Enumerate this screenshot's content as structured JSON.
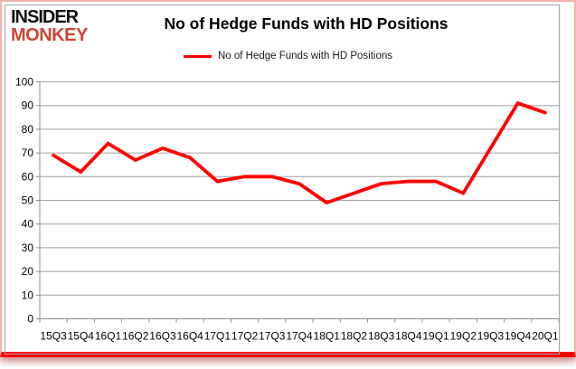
{
  "logo": {
    "line1": "INSIDER",
    "line2": "MONKEY"
  },
  "header": {
    "title": "No of Hedge Funds with HD Positions"
  },
  "legend": {
    "label": "No of Hedge Funds with HD Positions"
  },
  "colors": {
    "series": "#ff0000",
    "logo_red": "#cd4533",
    "logo_black": "#111111",
    "gridline": "#a0a0a0",
    "axis": "#8c8c8c",
    "tick_text": "#000000",
    "card_border": "#f2b2ab",
    "bottom_bar": "#ff0000"
  },
  "chart_data": {
    "type": "line",
    "title": "No of Hedge Funds with HD Positions",
    "categories": [
      "15Q3",
      "15Q4",
      "16Q1",
      "16Q2",
      "16Q3",
      "16Q4",
      "17Q1",
      "17Q2",
      "17Q3",
      "17Q4",
      "18Q1",
      "18Q2",
      "18Q3",
      "18Q4",
      "19Q1",
      "19Q2",
      "19Q3",
      "19Q4",
      "20Q1"
    ],
    "series": [
      {
        "name": "No of Hedge Funds with HD Positions",
        "values": [
          69,
          62,
          74,
          67,
          72,
          68,
          58,
          60,
          60,
          57,
          49,
          53,
          57,
          58,
          58,
          53,
          72,
          91,
          87
        ]
      }
    ],
    "xlabel": "",
    "ylabel": "",
    "ylim": [
      0,
      100
    ],
    "yticks": [
      0,
      10,
      20,
      30,
      40,
      50,
      60,
      70,
      80,
      90,
      100
    ],
    "grid": true,
    "legend_position": "top-center",
    "marker": "none"
  }
}
